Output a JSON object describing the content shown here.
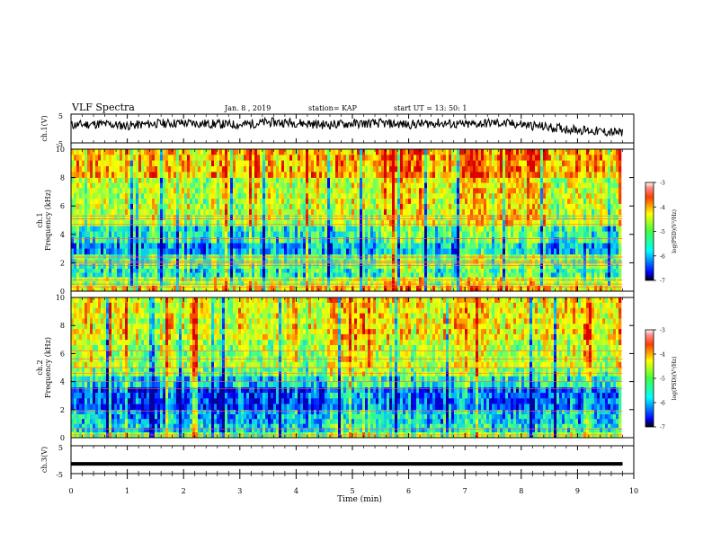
{
  "header": {
    "title": "VLF Spectra",
    "date": "Jan. 8 , 2019",
    "station": "station= KAP",
    "start": "start UT = 13: 50: 1"
  },
  "chart_data": [
    {
      "type": "line",
      "panel": "waveform-ch1",
      "ylabel": "ch.1(V)",
      "ylim": [
        -5,
        5
      ],
      "yticks": [
        "5",
        "-5"
      ],
      "xlim": [
        0,
        10
      ],
      "series": [
        {
          "x": [
            0.0,
            0.5,
            1.0,
            1.5,
            2.0,
            2.5,
            3.0,
            3.5,
            4.0,
            4.5,
            5.0,
            5.5,
            6.0,
            6.5,
            7.0,
            7.5,
            8.0,
            8.5,
            9.0,
            9.5,
            9.8
          ],
          "values": [
            1.2,
            1.6,
            1.0,
            1.7,
            1.9,
            1.6,
            1.3,
            2.2,
            2.0,
            1.3,
            1.7,
            1.8,
            1.4,
            1.9,
            1.3,
            2.0,
            1.4,
            0.4,
            -0.4,
            -1.2,
            -1.5
          ]
        }
      ]
    },
    {
      "type": "heatmap",
      "panel": "spectrogram-ch1",
      "ylabel": "ch.1 Frequency (kHz)",
      "ylim": [
        0,
        10
      ],
      "yticks": [
        "0",
        "2",
        "4",
        "6",
        "8",
        "10"
      ],
      "xlim": [
        0,
        10
      ],
      "data_end_min": 9.8,
      "colorbar": {
        "label": "log(PSD)(V²/Hz)",
        "range": [
          -7,
          -3
        ],
        "ticks": [
          "-3",
          "-4",
          "-5",
          "-6",
          "-7"
        ]
      },
      "bands": [
        {
          "from_khz": 0,
          "to_khz": 0.4,
          "level": -4.1
        },
        {
          "from_khz": 0.4,
          "to_khz": 1.0,
          "level": -4.6
        },
        {
          "from_khz": 1.0,
          "to_khz": 1.6,
          "level": -5.4
        },
        {
          "from_khz": 1.6,
          "to_khz": 2.6,
          "level": -5.1
        },
        {
          "from_khz": 2.6,
          "to_khz": 3.4,
          "level": -5.9
        },
        {
          "from_khz": 3.4,
          "to_khz": 4.6,
          "level": -5.4
        },
        {
          "from_khz": 4.6,
          "to_khz": 5.4,
          "level": -4.6
        },
        {
          "from_khz": 5.4,
          "to_khz": 8.0,
          "level": -4.5
        },
        {
          "from_khz": 8.0,
          "to_khz": 10.0,
          "level": -3.9
        }
      ],
      "lines_khz": [
        0.3,
        0.5,
        0.8,
        1.8,
        2.0,
        2.1,
        2.4,
        3.7,
        4.7,
        5.1,
        5.3
      ],
      "hotspots_min": [
        [
          5.5,
          6.2
        ],
        [
          6.9,
          7.3
        ],
        [
          7.6,
          8.4
        ]
      ]
    },
    {
      "type": "heatmap",
      "panel": "spectrogram-ch2",
      "ylabel": "ch.2 Frequency (kHz)",
      "ylim": [
        0,
        10
      ],
      "yticks": [
        "0",
        "2",
        "4",
        "6",
        "8",
        "10"
      ],
      "xlim": [
        0,
        10
      ],
      "data_end_min": 9.8,
      "colorbar": {
        "label": "log(PSD)(V²/Hz)",
        "range": [
          -7,
          -3
        ],
        "ticks": [
          "-3",
          "-4",
          "-5",
          "-6",
          "-7"
        ]
      },
      "bands": [
        {
          "from_khz": 0,
          "to_khz": 0.4,
          "level": -4.8
        },
        {
          "from_khz": 0.4,
          "to_khz": 1.0,
          "level": -5.6
        },
        {
          "from_khz": 1.0,
          "to_khz": 2.0,
          "level": -5.8
        },
        {
          "from_khz": 2.0,
          "to_khz": 3.6,
          "level": -6.3
        },
        {
          "from_khz": 3.6,
          "to_khz": 4.4,
          "level": -5.5
        },
        {
          "from_khz": 4.4,
          "to_khz": 5.0,
          "level": -4.9
        },
        {
          "from_khz": 5.0,
          "to_khz": 7.0,
          "level": -4.6
        },
        {
          "from_khz": 7.0,
          "to_khz": 10.0,
          "level": -4.3
        }
      ],
      "lines_khz": [
        0.2,
        0.6,
        1.9,
        3.5,
        4.0,
        4.6,
        5.0,
        5.6,
        6.2
      ],
      "hotspots_min": [
        [
          4.6,
          5.3
        ],
        [
          6.8,
          7.4
        ]
      ]
    },
    {
      "type": "line",
      "panel": "waveform-ch3",
      "ylabel": "ch.3(V)",
      "ylim": [
        -5,
        5
      ],
      "yticks": [
        "5",
        "-5"
      ],
      "xlim": [
        0,
        10
      ],
      "series": [
        {
          "x": [
            0.0,
            9.8
          ],
          "values": [
            -1.5,
            -1.5
          ]
        }
      ]
    }
  ],
  "xaxis": {
    "label": "Time (min)",
    "ticks": [
      "0",
      "1",
      "2",
      "3",
      "4",
      "5",
      "6",
      "7",
      "8",
      "9",
      "10"
    ]
  },
  "colors": {
    "colormap": [
      "#000080",
      "#0000ff",
      "#0080ff",
      "#00ffff",
      "#80ff80",
      "#ffff00",
      "#ff8000",
      "#ff0000",
      "#800000"
    ],
    "axis": "#000000",
    "background": "#ffffff"
  }
}
